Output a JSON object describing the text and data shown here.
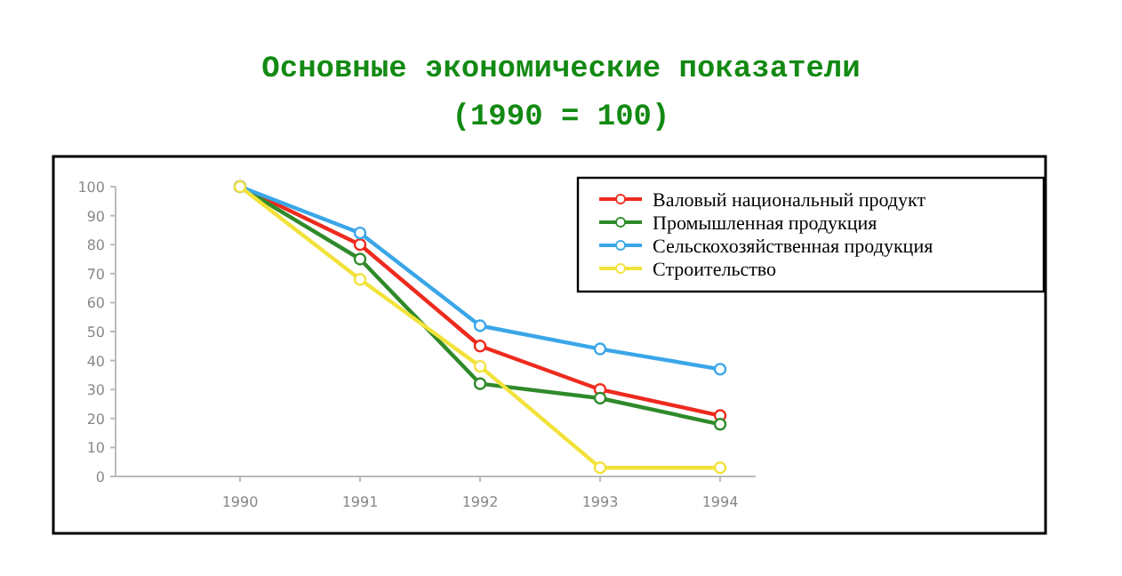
{
  "chart_data": {
    "type": "line",
    "title": "Основные экономические показатели",
    "subtitle": "(1990 = 100)",
    "categories": [
      "1990",
      "1991",
      "1992",
      "1993",
      "1994"
    ],
    "series": [
      {
        "name": "Валовый национальный продукт",
        "color": "#ee2a1e",
        "values": [
          100,
          80,
          45,
          30,
          21
        ]
      },
      {
        "name": "Промышленная продукция",
        "color": "#2f8a2a",
        "values": [
          100,
          75,
          32,
          27,
          18
        ]
      },
      {
        "name": "Сельскохозяйственная продукция",
        "color": "#3aa6e8",
        "values": [
          100,
          84,
          52,
          44,
          37
        ]
      },
      {
        "name": "Строительство",
        "color": "#f2e23a",
        "values": [
          100,
          68,
          38,
          3,
          3
        ]
      }
    ],
    "ylim": [
      0,
      100
    ],
    "yticks": [
      0,
      10,
      20,
      30,
      40,
      50,
      60,
      70,
      80,
      90,
      100
    ],
    "grid": false,
    "legend": "top right",
    "marker": "circle"
  }
}
